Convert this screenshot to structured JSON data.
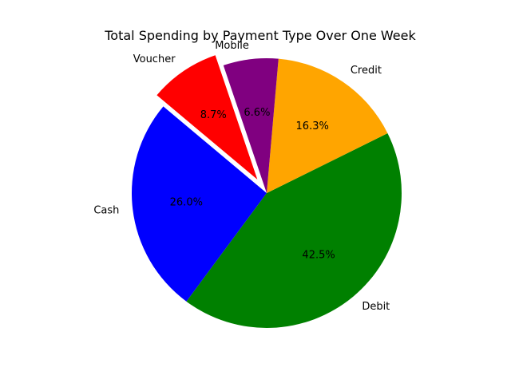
{
  "chart_data": {
    "type": "pie",
    "title": "Total Spending by Payment Type Over One Week",
    "slices": [
      {
        "label": "Cash",
        "percent_label": "26.0%",
        "value": 26.0,
        "color": "#0000ff",
        "exploded": false
      },
      {
        "label": "Debit",
        "percent_label": "42.5%",
        "value": 42.5,
        "color": "#008000",
        "exploded": false
      },
      {
        "label": "Credit",
        "percent_label": "16.3%",
        "value": 16.3,
        "color": "#ffa500",
        "exploded": false
      },
      {
        "label": "Mobile",
        "percent_label": "6.6%",
        "value": 6.6,
        "color": "#800080",
        "exploded": false
      },
      {
        "label": "Voucher",
        "percent_label": "8.7%",
        "value": 8.7,
        "color": "#ff0000",
        "exploded": true
      }
    ],
    "legend": "none"
  }
}
